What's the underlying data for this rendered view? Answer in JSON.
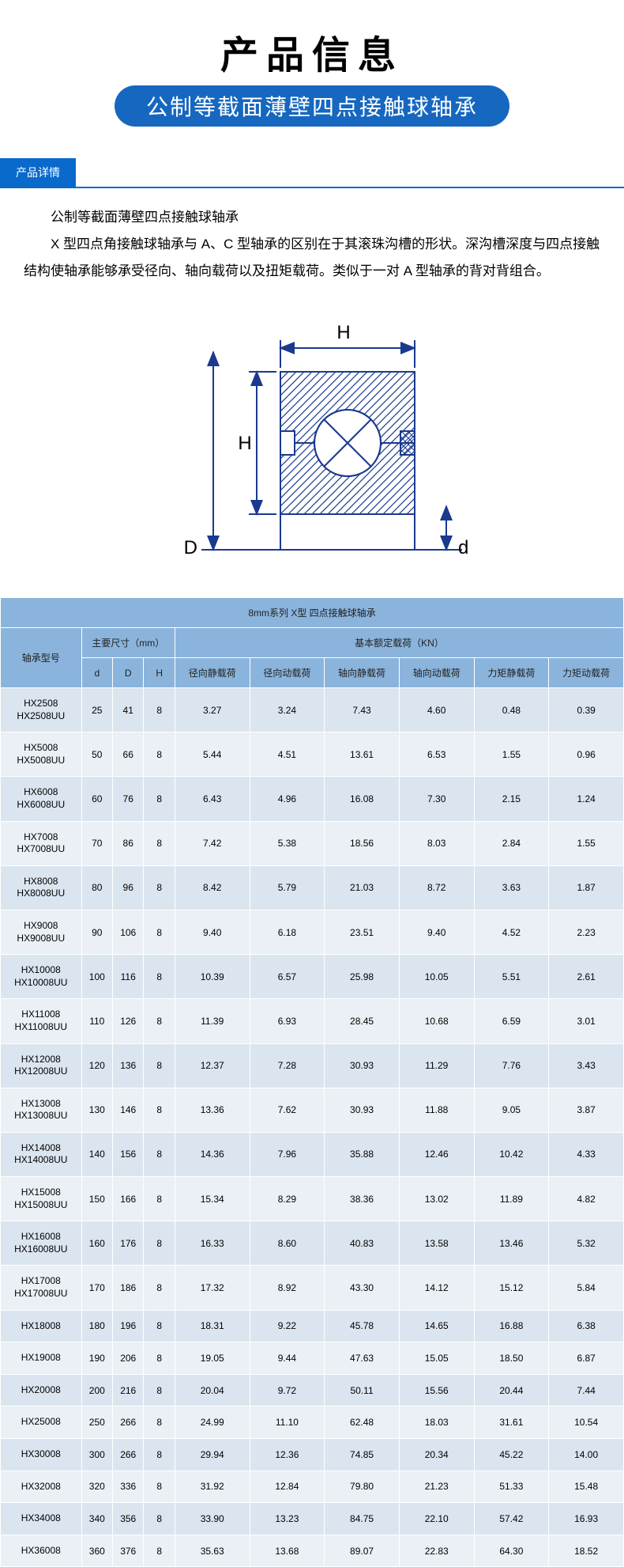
{
  "header": {
    "title": "产品信息",
    "subtitle": "公制等截面薄壁四点接触球轴承",
    "detail_tab": "产品详情"
  },
  "body": {
    "heading": "公制等截面薄壁四点接触球轴承",
    "para": "X 型四点角接触球轴承与 A、C 型轴承的区别在于其滚珠沟槽的形状。深沟槽深度与四点接触结构使轴承能够承受径向、轴向载荷以及扭矩载荷。类似于一对 A 型轴承的背对背组合。"
  },
  "diagram": {
    "labels": {
      "H_top": "H",
      "H_left": "H",
      "D": "D",
      "d": "d"
    },
    "colors": {
      "stroke": "#1a3a8f",
      "hatch": "#1a3a8f"
    }
  },
  "table": {
    "caption": "8mm系列 X型  四点接触球轴承",
    "group_model": "轴承型号",
    "group_dims": "主要尺寸（mm）",
    "group_loads": "基本额定载荷（KN）",
    "sub_dims": [
      "d",
      "D",
      "H"
    ],
    "sub_loads": [
      "径向静载荷",
      "径向动载荷",
      "轴向静载荷",
      "轴向动载荷",
      "力矩静载荷",
      "力矩动载荷"
    ],
    "col_widths_pct": [
      13,
      5,
      5,
      5,
      12,
      12,
      12,
      12,
      12,
      12
    ],
    "rows": [
      {
        "model": [
          "HX2508",
          "HX2508UU"
        ],
        "d": 25,
        "D": 41,
        "H": 8,
        "v": [
          3.27,
          3.24,
          7.43,
          4.6,
          0.48,
          0.39
        ]
      },
      {
        "model": [
          "HX5008",
          "HX5008UU"
        ],
        "d": 50,
        "D": 66,
        "H": 8,
        "v": [
          5.44,
          4.51,
          13.61,
          6.53,
          1.55,
          0.96
        ]
      },
      {
        "model": [
          "HX6008",
          "HX6008UU"
        ],
        "d": 60,
        "D": 76,
        "H": 8,
        "v": [
          6.43,
          4.96,
          16.08,
          7.3,
          2.15,
          1.24
        ]
      },
      {
        "model": [
          "HX7008",
          "HX7008UU"
        ],
        "d": 70,
        "D": 86,
        "H": 8,
        "v": [
          7.42,
          5.38,
          18.56,
          8.03,
          2.84,
          1.55
        ]
      },
      {
        "model": [
          "HX8008",
          "HX8008UU"
        ],
        "d": 80,
        "D": 96,
        "H": 8,
        "v": [
          8.42,
          5.79,
          21.03,
          8.72,
          3.63,
          1.87
        ]
      },
      {
        "model": [
          "HX9008",
          "HX9008UU"
        ],
        "d": 90,
        "D": 106,
        "H": 8,
        "v": [
          9.4,
          6.18,
          23.51,
          9.4,
          4.52,
          2.23
        ]
      },
      {
        "model": [
          "HX10008",
          "HX10008UU"
        ],
        "d": 100,
        "D": 116,
        "H": 8,
        "v": [
          10.39,
          6.57,
          25.98,
          10.05,
          5.51,
          2.61
        ]
      },
      {
        "model": [
          "HX11008",
          "HX11008UU"
        ],
        "d": 110,
        "D": 126,
        "H": 8,
        "v": [
          11.39,
          6.93,
          28.45,
          10.68,
          6.59,
          3.01
        ]
      },
      {
        "model": [
          "HX12008",
          "HX12008UU"
        ],
        "d": 120,
        "D": 136,
        "H": 8,
        "v": [
          12.37,
          7.28,
          30.93,
          11.29,
          7.76,
          3.43
        ]
      },
      {
        "model": [
          "HX13008",
          "HX13008UU"
        ],
        "d": 130,
        "D": 146,
        "H": 8,
        "v": [
          13.36,
          7.62,
          30.93,
          11.88,
          9.05,
          3.87
        ]
      },
      {
        "model": [
          "HX14008",
          "HX14008UU"
        ],
        "d": 140,
        "D": 156,
        "H": 8,
        "v": [
          14.36,
          7.96,
          35.88,
          12.46,
          10.42,
          4.33
        ]
      },
      {
        "model": [
          "HX15008",
          "HX15008UU"
        ],
        "d": 150,
        "D": 166,
        "H": 8,
        "v": [
          15.34,
          8.29,
          38.36,
          13.02,
          11.89,
          4.82
        ]
      },
      {
        "model": [
          "HX16008",
          "HX16008UU"
        ],
        "d": 160,
        "D": 176,
        "H": 8,
        "v": [
          16.33,
          8.6,
          40.83,
          13.58,
          13.46,
          5.32
        ]
      },
      {
        "model": [
          "HX17008",
          "HX17008UU"
        ],
        "d": 170,
        "D": 186,
        "H": 8,
        "v": [
          17.32,
          8.92,
          43.3,
          14.12,
          15.12,
          5.84
        ]
      },
      {
        "model": [
          "HX18008"
        ],
        "d": 180,
        "D": 196,
        "H": 8,
        "v": [
          18.31,
          9.22,
          45.78,
          14.65,
          16.88,
          6.38
        ]
      },
      {
        "model": [
          "HX19008"
        ],
        "d": 190,
        "D": 206,
        "H": 8,
        "v": [
          19.05,
          9.44,
          47.63,
          15.05,
          18.5,
          6.87
        ]
      },
      {
        "model": [
          "HX20008"
        ],
        "d": 200,
        "D": 216,
        "H": 8,
        "v": [
          20.04,
          9.72,
          50.11,
          15.56,
          20.44,
          7.44
        ]
      },
      {
        "model": [
          "HX25008"
        ],
        "d": 250,
        "D": 266,
        "H": 8,
        "v": [
          24.99,
          11.1,
          62.48,
          18.03,
          31.61,
          10.54
        ]
      },
      {
        "model": [
          "HX30008"
        ],
        "d": 300,
        "D": 266,
        "H": 8,
        "v": [
          29.94,
          12.36,
          74.85,
          20.34,
          45.22,
          14.0
        ]
      },
      {
        "model": [
          "HX32008"
        ],
        "d": 320,
        "D": 336,
        "H": 8,
        "v": [
          31.92,
          12.84,
          79.8,
          21.23,
          51.33,
          15.48
        ]
      },
      {
        "model": [
          "HX34008"
        ],
        "d": 340,
        "D": 356,
        "H": 8,
        "v": [
          33.9,
          13.23,
          84.75,
          22.1,
          57.42,
          16.93
        ]
      },
      {
        "model": [
          "HX36008"
        ],
        "d": 360,
        "D": 376,
        "H": 8,
        "v": [
          35.63,
          13.68,
          89.07,
          22.83,
          64.3,
          18.52
        ]
      }
    ],
    "colors": {
      "header_bg": "#8ab4dc",
      "odd_bg": "#dbe5f0",
      "even_bg": "#ebf0f6"
    }
  }
}
